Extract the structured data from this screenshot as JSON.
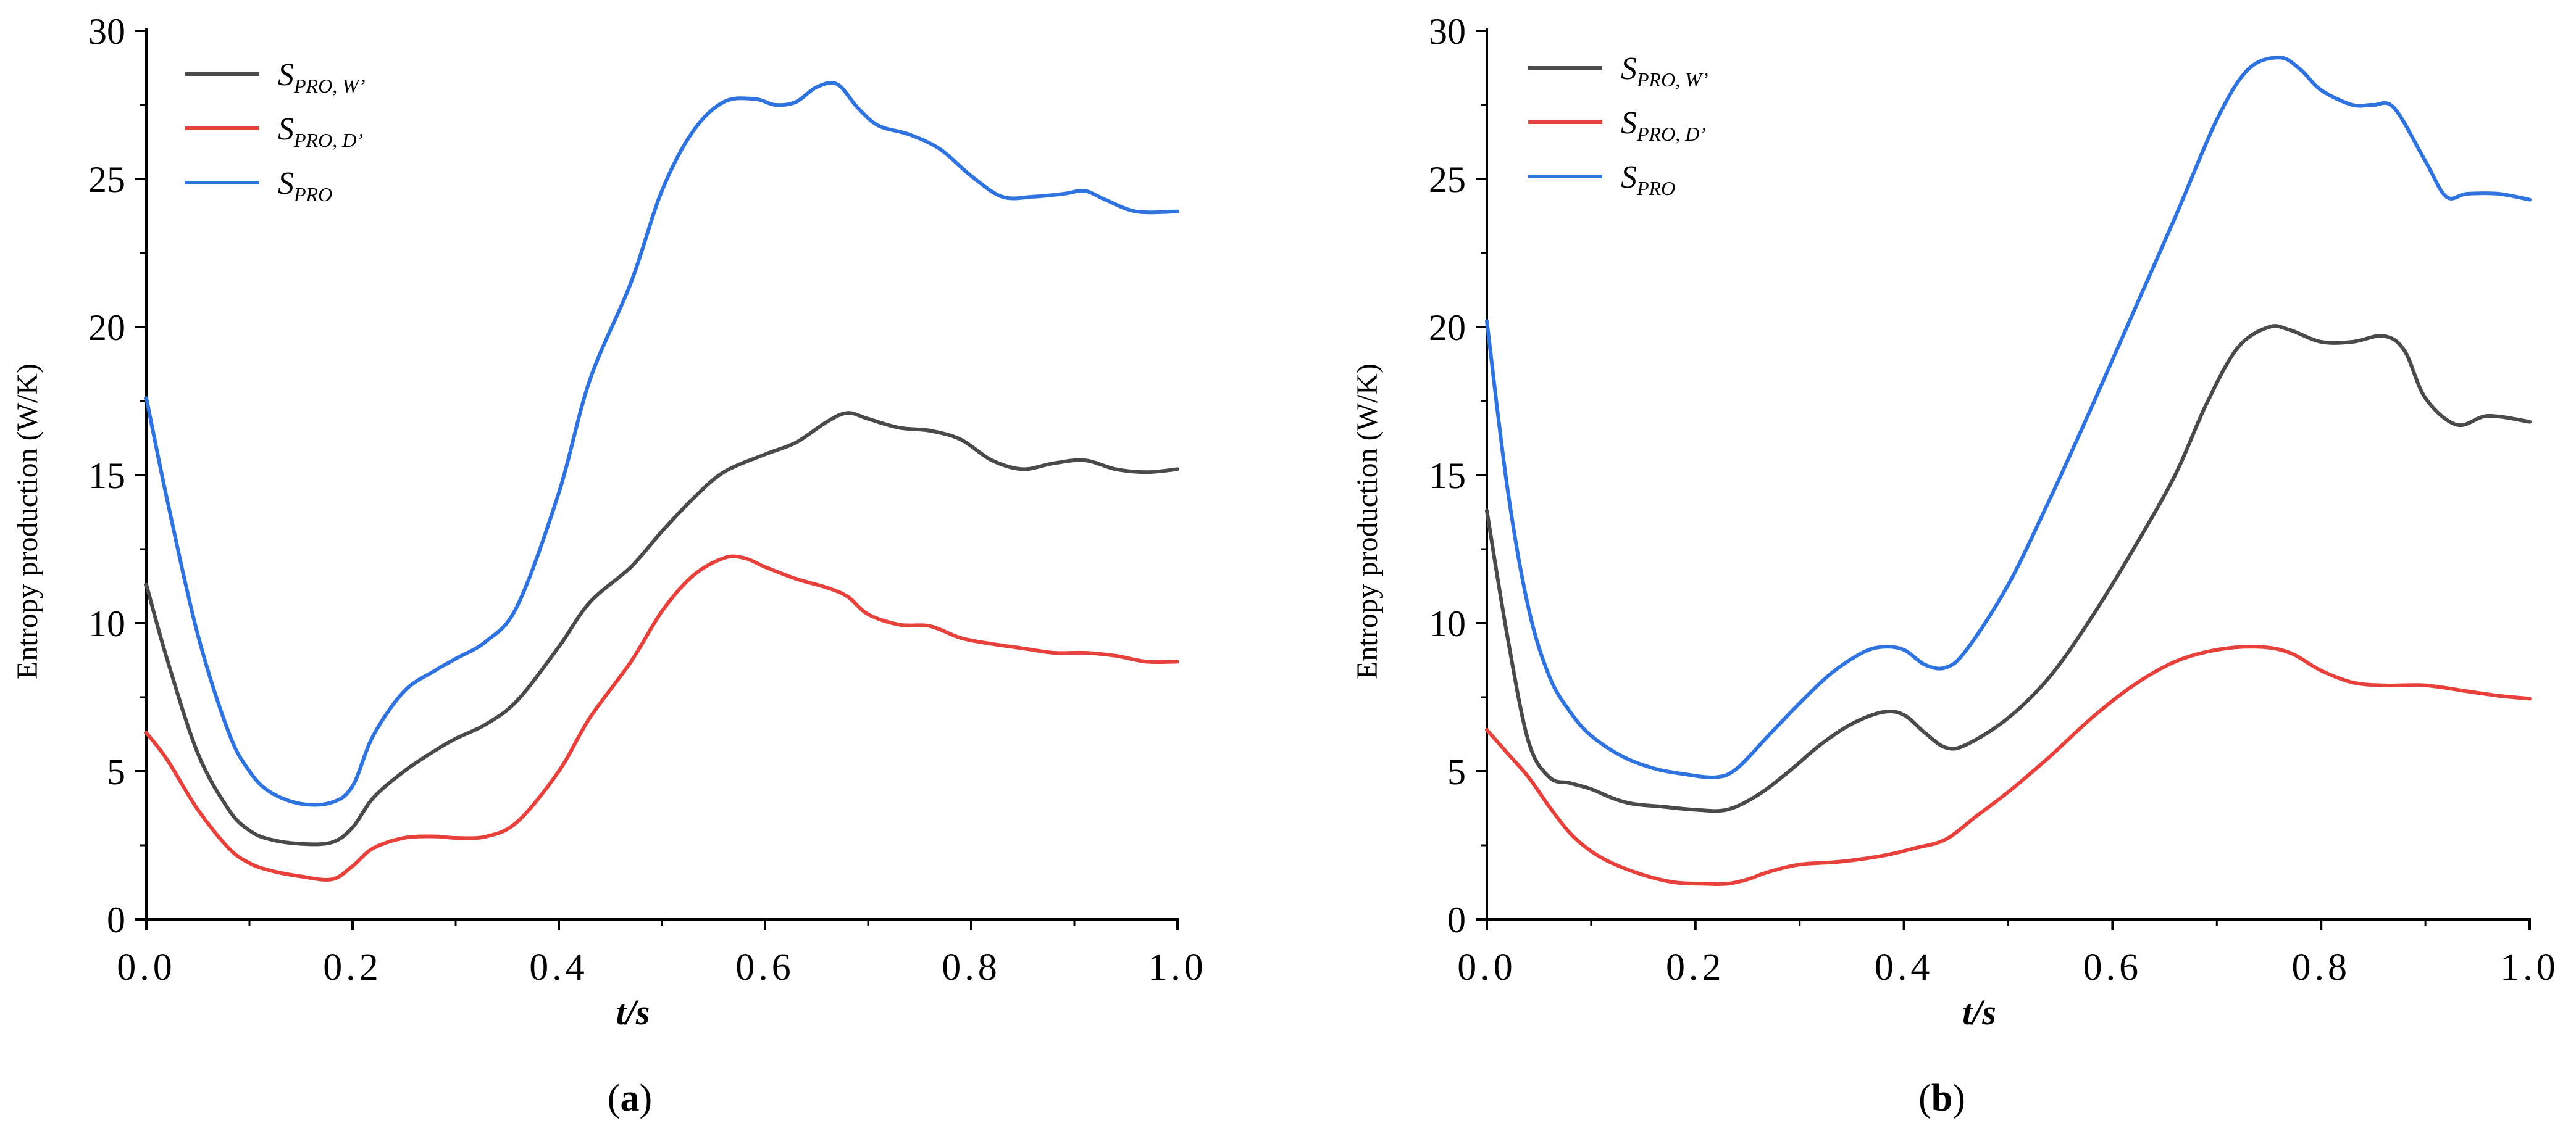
{
  "colors": {
    "axis": "#000000",
    "S_PRO_W": "#4a4a4a",
    "S_PRO_D": "#e8413c",
    "S_PRO": "#2e73e0"
  },
  "chart_data": [
    {
      "type": "line",
      "panel_label": {
        "open": "(",
        "letter": "a",
        "close": ")"
      },
      "xlabel": "t/s",
      "ylabel": "Entropy production (W/K)",
      "xlim": [
        0,
        1.0
      ],
      "ylim": [
        0,
        30
      ],
      "xticks": [
        "0.0",
        "0.2",
        "0.4",
        "0.6",
        "0.8",
        "1.0"
      ],
      "yticks": [
        "0",
        "5",
        "10",
        "15",
        "20",
        "25",
        "30"
      ],
      "legend_position": "top-left",
      "series": [
        {
          "name": "S_PRO,W'",
          "legend": {
            "main": "S",
            "sub": "PRO, W’"
          },
          "color_key": "S_PRO_W",
          "x": [
            0,
            0.02,
            0.05,
            0.08,
            0.1,
            0.12,
            0.15,
            0.18,
            0.2,
            0.22,
            0.25,
            0.28,
            0.3,
            0.33,
            0.36,
            0.4,
            0.43,
            0.47,
            0.5,
            0.53,
            0.56,
            0.6,
            0.63,
            0.66,
            0.68,
            0.7,
            0.73,
            0.76,
            0.79,
            0.82,
            0.85,
            0.88,
            0.91,
            0.94,
            0.97,
            1.0
          ],
          "y": [
            11.3,
            8.8,
            5.6,
            3.7,
            3.0,
            2.7,
            2.55,
            2.6,
            3.1,
            4.1,
            5.0,
            5.7,
            6.1,
            6.6,
            7.4,
            9.2,
            10.7,
            11.9,
            13.1,
            14.2,
            15.1,
            15.7,
            16.1,
            16.8,
            17.1,
            16.9,
            16.6,
            16.5,
            16.2,
            15.5,
            15.2,
            15.4,
            15.5,
            15.2,
            15.1,
            15.2
          ]
        },
        {
          "name": "S_PRO,D'",
          "legend": {
            "main": "S",
            "sub": "PRO, D’"
          },
          "color_key": "S_PRO_D",
          "x": [
            0,
            0.02,
            0.05,
            0.08,
            0.1,
            0.12,
            0.15,
            0.18,
            0.2,
            0.22,
            0.25,
            0.28,
            0.3,
            0.33,
            0.36,
            0.4,
            0.43,
            0.47,
            0.5,
            0.53,
            0.56,
            0.58,
            0.6,
            0.63,
            0.66,
            0.68,
            0.7,
            0.73,
            0.76,
            0.79,
            0.82,
            0.85,
            0.88,
            0.91,
            0.94,
            0.97,
            1.0
          ],
          "y": [
            6.3,
            5.4,
            3.7,
            2.4,
            1.9,
            1.65,
            1.45,
            1.35,
            1.8,
            2.4,
            2.75,
            2.8,
            2.75,
            2.8,
            3.3,
            5.0,
            6.8,
            8.7,
            10.4,
            11.6,
            12.2,
            12.2,
            11.9,
            11.5,
            11.2,
            10.9,
            10.3,
            9.95,
            9.9,
            9.5,
            9.3,
            9.15,
            9.0,
            9.0,
            8.9,
            8.7,
            8.7
          ]
        },
        {
          "name": "S_PRO",
          "legend": {
            "main": "S",
            "sub": "PRO"
          },
          "color_key": "S_PRO",
          "x": [
            0,
            0.02,
            0.05,
            0.08,
            0.1,
            0.12,
            0.15,
            0.18,
            0.2,
            0.22,
            0.25,
            0.28,
            0.3,
            0.33,
            0.36,
            0.4,
            0.43,
            0.47,
            0.5,
            0.53,
            0.56,
            0.59,
            0.61,
            0.63,
            0.65,
            0.67,
            0.69,
            0.71,
            0.74,
            0.77,
            0.8,
            0.83,
            0.86,
            0.89,
            0.91,
            0.93,
            0.96,
            1.0
          ],
          "y": [
            17.6,
            14.2,
            9.6,
            6.3,
            5.0,
            4.3,
            3.9,
            3.95,
            4.5,
            6.2,
            7.7,
            8.4,
            8.8,
            9.4,
            10.6,
            14.4,
            18.2,
            21.5,
            24.6,
            26.6,
            27.6,
            27.7,
            27.5,
            27.6,
            28.1,
            28.2,
            27.4,
            26.8,
            26.5,
            26.0,
            25.1,
            24.4,
            24.4,
            24.5,
            24.6,
            24.3,
            23.9,
            23.9
          ]
        }
      ]
    },
    {
      "type": "line",
      "panel_label": {
        "open": "(",
        "letter": "b",
        "close": ")"
      },
      "xlabel": "t/s",
      "ylabel": "Entropy production (W/K)",
      "xlim": [
        0,
        1.0
      ],
      "ylim": [
        0,
        30
      ],
      "xticks": [
        "0.0",
        "0.2",
        "0.4",
        "0.6",
        "0.8",
        "1.0"
      ],
      "yticks": [
        "0",
        "5",
        "10",
        "15",
        "20",
        "25",
        "30"
      ],
      "legend_position": "top-left",
      "series": [
        {
          "name": "S_PRO,W'",
          "legend": {
            "main": "S",
            "sub": "PRO, W’"
          },
          "color_key": "S_PRO_W",
          "x": [
            0,
            0.02,
            0.04,
            0.06,
            0.08,
            0.1,
            0.12,
            0.14,
            0.17,
            0.2,
            0.23,
            0.26,
            0.29,
            0.32,
            0.35,
            0.38,
            0.4,
            0.42,
            0.44,
            0.46,
            0.5,
            0.54,
            0.58,
            0.62,
            0.66,
            0.69,
            0.72,
            0.75,
            0.77,
            0.8,
            0.83,
            0.86,
            0.88,
            0.9,
            0.93,
            0.96,
            1.0
          ],
          "y": [
            13.8,
            9.5,
            6.0,
            4.8,
            4.6,
            4.4,
            4.1,
            3.9,
            3.8,
            3.7,
            3.7,
            4.2,
            5.0,
            5.9,
            6.6,
            7.0,
            6.9,
            6.3,
            5.8,
            5.9,
            6.8,
            8.2,
            10.2,
            12.5,
            15.0,
            17.4,
            19.3,
            20.0,
            19.9,
            19.5,
            19.5,
            19.7,
            19.2,
            17.6,
            16.7,
            17.0,
            16.8
          ]
        },
        {
          "name": "S_PRO,D'",
          "legend": {
            "main": "S",
            "sub": "PRO, D’"
          },
          "color_key": "S_PRO_D",
          "x": [
            0,
            0.02,
            0.04,
            0.06,
            0.08,
            0.1,
            0.12,
            0.15,
            0.18,
            0.21,
            0.23,
            0.25,
            0.27,
            0.3,
            0.34,
            0.38,
            0.41,
            0.44,
            0.47,
            0.5,
            0.54,
            0.58,
            0.62,
            0.66,
            0.7,
            0.74,
            0.77,
            0.8,
            0.83,
            0.86,
            0.9,
            0.94,
            0.97,
            1.0
          ],
          "y": [
            6.4,
            5.6,
            4.8,
            3.8,
            2.9,
            2.3,
            1.9,
            1.5,
            1.25,
            1.2,
            1.2,
            1.35,
            1.6,
            1.85,
            1.95,
            2.15,
            2.4,
            2.7,
            3.5,
            4.3,
            5.5,
            6.8,
            7.9,
            8.7,
            9.1,
            9.2,
            9.0,
            8.4,
            8.0,
            7.9,
            7.9,
            7.7,
            7.55,
            7.45
          ]
        },
        {
          "name": "S_PRO",
          "legend": {
            "main": "S",
            "sub": "PRO"
          },
          "color_key": "S_PRO",
          "x": [
            0,
            0.02,
            0.04,
            0.06,
            0.08,
            0.1,
            0.13,
            0.16,
            0.19,
            0.22,
            0.24,
            0.27,
            0.3,
            0.33,
            0.36,
            0.38,
            0.4,
            0.42,
            0.44,
            0.46,
            0.5,
            0.54,
            0.58,
            0.62,
            0.66,
            0.7,
            0.73,
            0.76,
            0.78,
            0.8,
            0.83,
            0.85,
            0.87,
            0.9,
            0.92,
            0.94,
            0.97,
            1.0
          ],
          "y": [
            20.2,
            14.5,
            10.5,
            8.2,
            7.0,
            6.2,
            5.5,
            5.1,
            4.9,
            4.8,
            5.1,
            6.2,
            7.3,
            8.3,
            9.0,
            9.2,
            9.1,
            8.6,
            8.5,
            9.1,
            11.3,
            14.2,
            17.3,
            20.5,
            23.7,
            27.0,
            28.7,
            29.1,
            28.7,
            28.0,
            27.5,
            27.5,
            27.4,
            25.6,
            24.4,
            24.5,
            24.5,
            24.3
          ]
        }
      ]
    }
  ]
}
